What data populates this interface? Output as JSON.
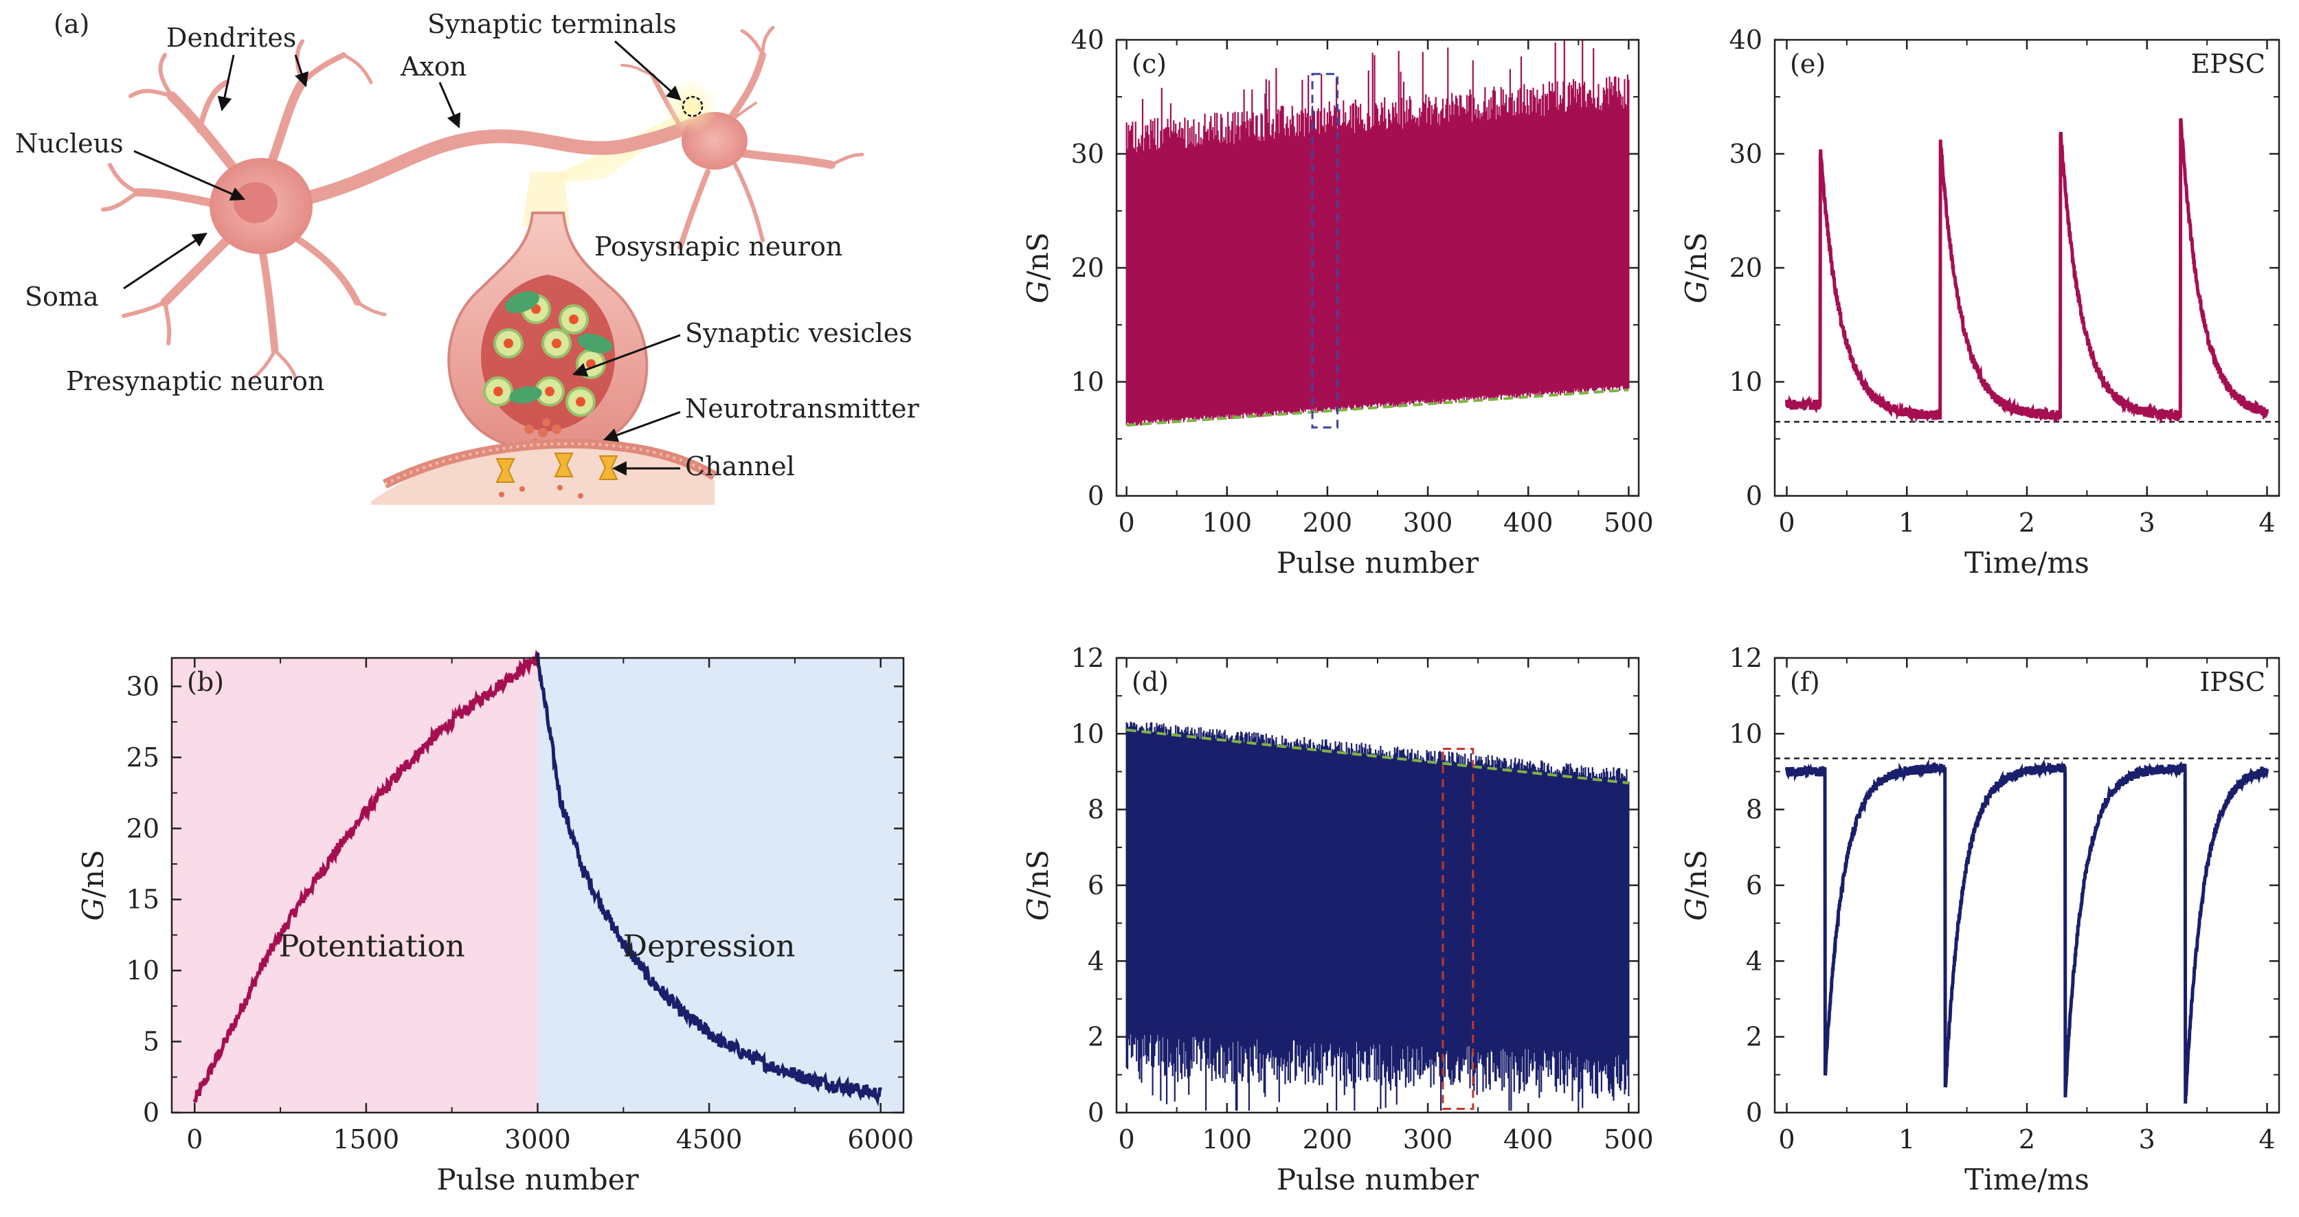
{
  "figure": {
    "panel_a": {
      "label": "(a)",
      "labels": {
        "dendrites": "Dendrites",
        "synaptic_terminals": "Synaptic terminals",
        "axon": "Axon",
        "nucleus": "Nucleus",
        "soma": "Soma",
        "posysnapic_neuron": "Posysnapic neuron",
        "presynaptic_neuron": "Presynaptic neuron",
        "synaptic_vesicles": "Synaptic vesicles",
        "neurotransmitter": "Neurotransmitter",
        "channel": "Channel"
      }
    }
  },
  "colors": {
    "potentiation": "#a50f52",
    "depression": "#1a1f6b",
    "fit_line": "#7cb342",
    "pink_region": "#fadbe8",
    "blue_region": "#dde9f7",
    "axis": "#222222"
  },
  "chart_data": [
    {
      "id": "b",
      "type": "line",
      "label": "(b)",
      "xlabel": "Pulse number",
      "ylabel_italic": "G",
      "ylabel_rest": "/nS",
      "xlim": [
        -200,
        6200
      ],
      "ylim": [
        0,
        32
      ],
      "xticks": [
        0,
        1500,
        3000,
        4500,
        6000
      ],
      "yticks": [
        0,
        5,
        10,
        15,
        20,
        25,
        30
      ],
      "regions": [
        {
          "name": "Potentiation",
          "x": [
            -200,
            3000
          ]
        },
        {
          "name": "Depression",
          "x": [
            3000,
            6200
          ]
        }
      ],
      "series": [
        {
          "name": "Potentiation",
          "x": [
            0,
            300,
            600,
            900,
            1200,
            1500,
            1800,
            2100,
            2400,
            2700,
            3000
          ],
          "values": [
            0.8,
            5.5,
            10.5,
            14.5,
            18.0,
            21.2,
            24.0,
            26.5,
            28.5,
            30.3,
            32.0
          ]
        },
        {
          "name": "Depression",
          "x": [
            3000,
            3200,
            3400,
            3700,
            4000,
            4300,
            4600,
            5000,
            5400,
            5800,
            6000
          ],
          "values": [
            32.0,
            22.0,
            17.0,
            12.5,
            9.2,
            6.8,
            5.0,
            3.4,
            2.3,
            1.6,
            1.3
          ]
        }
      ]
    },
    {
      "id": "c",
      "type": "line",
      "label": "(c)",
      "xlabel": "Pulse number",
      "ylabel_italic": "G",
      "ylabel_rest": "/nS",
      "xlim": [
        -10,
        510
      ],
      "ylim": [
        0,
        40
      ],
      "xticks": [
        0,
        100,
        200,
        300,
        400,
        500
      ],
      "yticks": [
        0,
        10,
        20,
        30,
        40
      ],
      "band": {
        "x": [
          0,
          500
        ],
        "lower": [
          6.3,
          9.5
        ],
        "upper": [
          31.5,
          35.5
        ]
      },
      "baseline_fit": {
        "x": [
          0,
          500
        ],
        "y": [
          6.2,
          9.3
        ]
      },
      "highlight_box": {
        "x": [
          185,
          210
        ],
        "y": [
          6.0,
          37.0
        ]
      }
    },
    {
      "id": "d",
      "type": "line",
      "label": "(d)",
      "xlabel": "Pulse number",
      "ylabel_italic": "G",
      "ylabel_rest": "/nS",
      "xlim": [
        -10,
        510
      ],
      "ylim": [
        0,
        12
      ],
      "xticks": [
        0,
        100,
        200,
        300,
        400,
        500
      ],
      "yticks": [
        0,
        2,
        4,
        6,
        8,
        10,
        12
      ],
      "band": {
        "x": [
          0,
          500
        ],
        "lower": [
          1.5,
          1.0
        ],
        "upper": [
          10.2,
          8.9
        ]
      },
      "baseline_fit": {
        "x": [
          0,
          500
        ],
        "y": [
          10.1,
          8.7
        ]
      },
      "highlight_box": {
        "x": [
          315,
          345
        ],
        "y": [
          0.1,
          9.6
        ]
      }
    },
    {
      "id": "e",
      "type": "line",
      "label": "(e)",
      "annotation": "EPSC",
      "xlabel": "Time/ms",
      "ylabel_italic": "G",
      "ylabel_rest": "/nS",
      "xlim": [
        -0.1,
        4.1
      ],
      "ylim": [
        0,
        40
      ],
      "xticks": [
        0,
        1,
        2,
        3,
        4
      ],
      "yticks": [
        0,
        10,
        20,
        30,
        40
      ],
      "baseline": 6.5,
      "rest_level": 8.0,
      "pulse_times": [
        0.28,
        1.28,
        2.28,
        3.28
      ],
      "peaks": [
        30.3,
        31.2,
        32.0,
        33.2
      ],
      "decay_floor": 7.0
    },
    {
      "id": "f",
      "type": "line",
      "label": "(f)",
      "annotation": "IPSC",
      "xlabel": "Time/ms",
      "ylabel_italic": "G",
      "ylabel_rest": "/nS",
      "xlim": [
        -0.1,
        4.1
      ],
      "ylim": [
        0,
        12
      ],
      "xticks": [
        0,
        1,
        2,
        3,
        4
      ],
      "yticks": [
        0,
        2,
        4,
        6,
        8,
        10,
        12
      ],
      "baseline": 9.35,
      "rest_level": 9.0,
      "pulse_times": [
        0.32,
        1.32,
        2.32,
        3.32
      ],
      "troughs": [
        1.0,
        0.6,
        0.5,
        0.3
      ],
      "recovery_ceiling": 9.1
    }
  ]
}
